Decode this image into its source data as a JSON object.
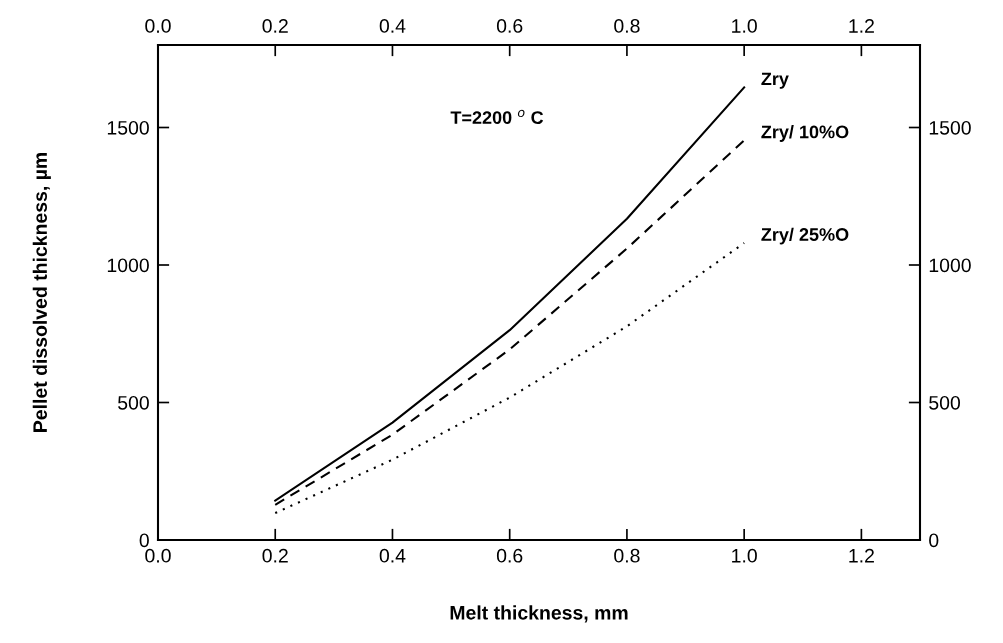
{
  "chart_data": {
    "type": "line",
    "xlabel": "Melt thickness, mm",
    "ylabel": "Pellet dissolved thickness, µm",
    "x": [
      0.2,
      0.4,
      0.6,
      0.8,
      1.0
    ],
    "series": [
      {
        "name": "Zry",
        "color": "#000000",
        "line_style": "solid",
        "values": [
          143,
          427,
          763,
          1168,
          1646
        ]
      },
      {
        "name": "Zry/ 10%O",
        "color": "#000000",
        "line_style": "dashed",
        "values": [
          128,
          383,
          693,
          1060,
          1453
        ]
      },
      {
        "name": "Zry/ 25%O",
        "color": "#000000",
        "line_style": "dotted",
        "values": [
          98,
          292,
          518,
          777,
          1080
        ]
      }
    ],
    "annotations": [
      "T=2200 $^{o}$ C"
    ],
    "xlim": [
      0,
      1.3
    ],
    "xticks": [
      {
        "value": 0,
        "label": "0.0"
      },
      0.2,
      0.4,
      0.6,
      0.8,
      {
        "value": 1,
        "label": "1.0"
      },
      1.2
    ],
    "x2lim": [
      0,
      1.3
    ],
    "x2ticks": [
      {
        "value": 0,
        "label": "0.0"
      },
      0.2,
      0.4,
      0.6,
      0.8,
      {
        "value": 1,
        "label": "1.0"
      },
      1.2
    ],
    "ylim": [
      0,
      1800
    ],
    "yticks": [
      0,
      500,
      1000,
      1500
    ],
    "y2lim": [
      0,
      1800
    ],
    "y2ticks": [
      0,
      500,
      1000,
      1500
    ],
    "grid": false,
    "legend": false
  }
}
